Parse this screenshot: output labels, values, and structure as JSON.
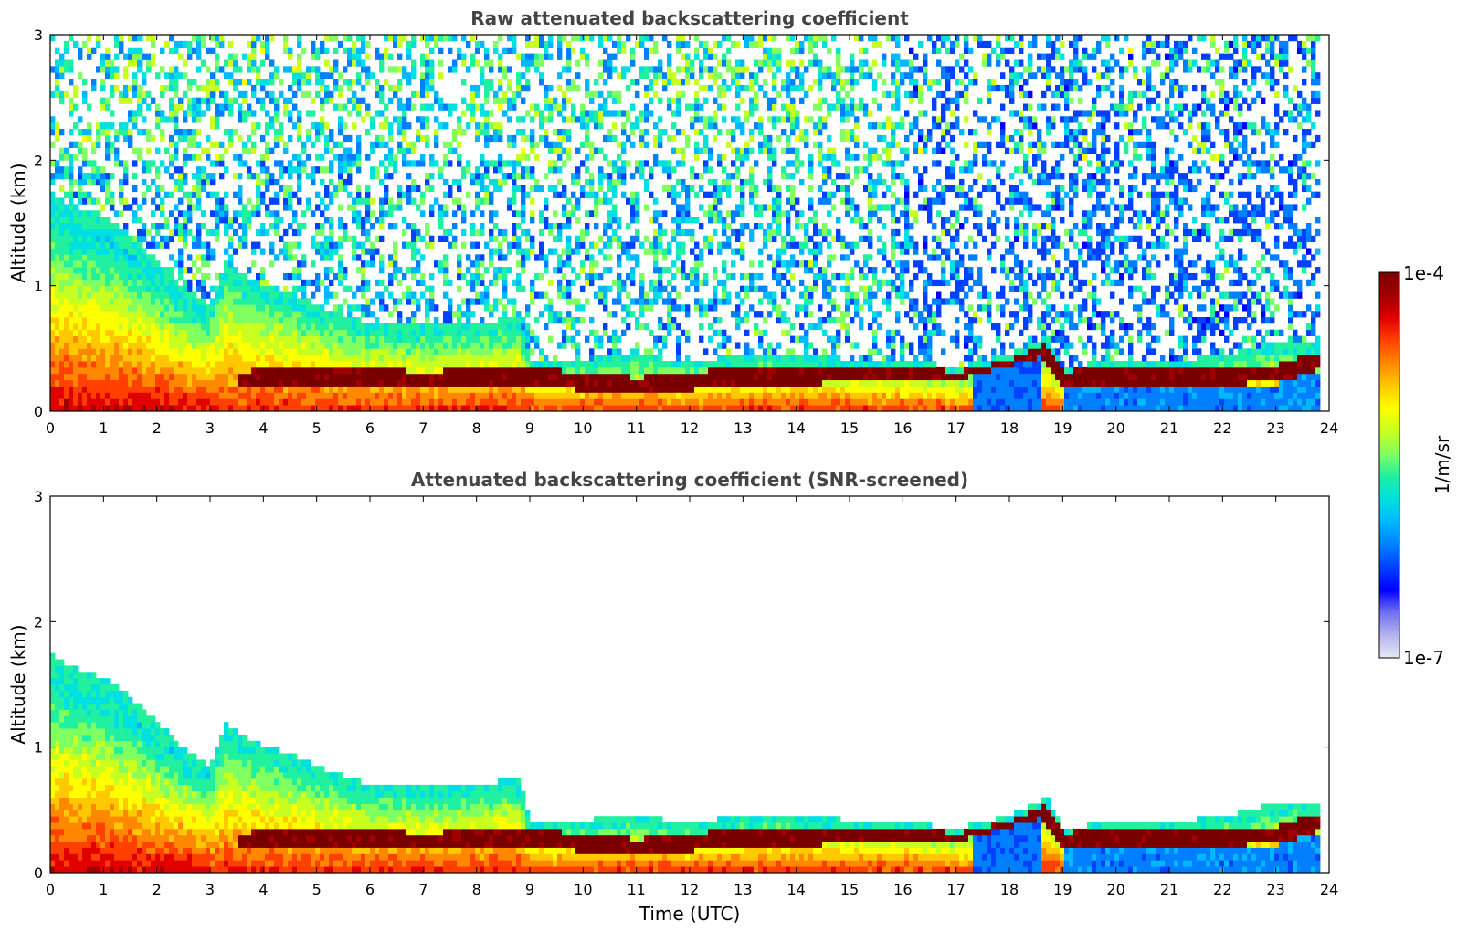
{
  "chart_data": [
    {
      "type": "heatmap",
      "title": "Raw attenuated backscattering coefficient",
      "xlabel": "",
      "ylabel": "Altitude (km)",
      "xlim": [
        0,
        24
      ],
      "ylim": [
        0,
        3
      ],
      "xticks": [
        "0",
        "1",
        "2",
        "3",
        "4",
        "5",
        "6",
        "7",
        "8",
        "9",
        "10",
        "11",
        "12",
        "13",
        "14",
        "15",
        "16",
        "17",
        "18",
        "19",
        "20",
        "21",
        "22",
        "23",
        "24"
      ],
      "yticks": [
        "0",
        "1",
        "2",
        "3"
      ],
      "data_end_hour": 23.8,
      "boundary_layer_top_km": [
        [
          0,
          1.75
        ],
        [
          0.5,
          1.62
        ],
        [
          1,
          1.55
        ],
        [
          1.5,
          1.4
        ],
        [
          2,
          1.2
        ],
        [
          2.5,
          1.0
        ],
        [
          3,
          0.85
        ],
        [
          3.3,
          1.2
        ],
        [
          3.8,
          1.05
        ],
        [
          4.5,
          0.95
        ],
        [
          5,
          0.85
        ],
        [
          6,
          0.7
        ],
        [
          7,
          0.68
        ],
        [
          8,
          0.7
        ],
        [
          8.8,
          0.75
        ],
        [
          9,
          0.4
        ],
        [
          10,
          0.42
        ],
        [
          11,
          0.45
        ],
        [
          12,
          0.4
        ],
        [
          13,
          0.45
        ],
        [
          14,
          0.45
        ],
        [
          15,
          0.42
        ],
        [
          16,
          0.4
        ],
        [
          17,
          0.35
        ],
        [
          18,
          0.45
        ],
        [
          18.7,
          0.6
        ],
        [
          19,
          0.35
        ],
        [
          20,
          0.4
        ],
        [
          21,
          0.4
        ],
        [
          22,
          0.45
        ],
        [
          23,
          0.55
        ],
        [
          23.8,
          0.55
        ]
      ],
      "aerosol_layer_peak_km": [
        [
          3.5,
          0.25
        ],
        [
          5,
          0.28
        ],
        [
          7,
          0.25
        ],
        [
          9,
          0.28
        ],
        [
          11,
          0.2
        ],
        [
          13,
          0.28
        ],
        [
          15,
          0.3
        ],
        [
          17,
          0.32
        ],
        [
          18.6,
          0.5
        ],
        [
          19,
          0.28
        ],
        [
          21,
          0.28
        ],
        [
          23,
          0.3
        ],
        [
          23.8,
          0.4
        ]
      ],
      "noise_level": "high above boundary layer"
    },
    {
      "type": "heatmap",
      "title": "Attenuated backscattering coefficient (SNR-screened)",
      "xlabel": "Time (UTC)",
      "ylabel": "Altitude (km)",
      "xlim": [
        0,
        24
      ],
      "ylim": [
        0,
        3
      ],
      "xticks": [
        "0",
        "1",
        "2",
        "3",
        "4",
        "5",
        "6",
        "7",
        "8",
        "9",
        "10",
        "11",
        "12",
        "13",
        "14",
        "15",
        "16",
        "17",
        "18",
        "19",
        "20",
        "21",
        "22",
        "23",
        "24"
      ],
      "yticks": [
        "0",
        "1",
        "2",
        "3"
      ],
      "data_end_hour": 23.8,
      "noise_level": "screened (white above boundary layer)"
    }
  ],
  "colorbar": {
    "label": "1/m/sr",
    "max_label": "1e-4",
    "min_label": "1e-7",
    "scale": "log",
    "colormap": [
      "#e6e6f5",
      "#b4b4f0",
      "#7070f0",
      "#0000ff",
      "#0040ff",
      "#0080ff",
      "#00b8ff",
      "#00e0e0",
      "#20f0a0",
      "#80ff60",
      "#c8ff20",
      "#ffff00",
      "#ffc800",
      "#ff8800",
      "#ff4000",
      "#e00000",
      "#a00000",
      "#7a0000"
    ]
  }
}
